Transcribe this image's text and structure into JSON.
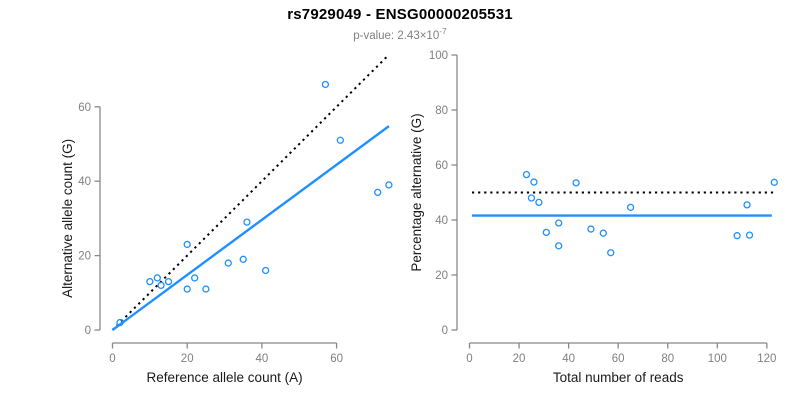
{
  "header": {
    "title": "rs7929049 - ENSG00000205531",
    "subtitle_prefix": "p-value: ",
    "subtitle_mantissa": "2.43×10",
    "subtitle_exponent": "-7"
  },
  "colors": {
    "point": "#1E90FF",
    "fit_line": "#1E90FF",
    "reference_line": "#000000",
    "axis": "#888888",
    "tick_label": "#808080",
    "axis_label": "#1a1a1a",
    "title": "#000000",
    "subtitle": "#808080",
    "background": "#ffffff"
  },
  "chart_data": [
    {
      "type": "scatter",
      "panel": "left",
      "xlabel": "Reference allele count (A)",
      "ylabel": "Alternative allele count (G)",
      "xlim": [
        0,
        74.5
      ],
      "ylim": [
        0,
        74.5
      ],
      "x_ticks": [
        0,
        20,
        40,
        60
      ],
      "y_ticks": [
        0,
        20,
        40,
        60
      ],
      "grid": false,
      "points": [
        [
          2,
          2
        ],
        [
          10,
          13
        ],
        [
          12,
          14
        ],
        [
          13,
          12
        ],
        [
          15,
          13
        ],
        [
          20,
          11
        ],
        [
          20,
          23
        ],
        [
          22,
          14
        ],
        [
          25,
          11
        ],
        [
          31,
          18
        ],
        [
          35,
          19
        ],
        [
          36,
          29
        ],
        [
          41,
          16
        ],
        [
          57,
          66
        ],
        [
          61,
          51
        ],
        [
          71,
          37
        ],
        [
          74,
          39
        ]
      ],
      "lines": [
        {
          "role": "identity-line",
          "style": "dotted",
          "color": "#000000",
          "x1": 0,
          "y1": 0,
          "x2": 73.5,
          "y2": 73.5
        },
        {
          "role": "fit-line",
          "style": "solid",
          "color": "#1E90FF",
          "x1": 0,
          "y1": 0,
          "x2": 74,
          "y2": 54.8
        }
      ]
    },
    {
      "type": "scatter",
      "panel": "right",
      "xlabel": "Total number of reads",
      "ylabel": "Percentage alternative (G)",
      "xlim": [
        0,
        124
      ],
      "ylim": [
        0,
        100
      ],
      "x_ticks": [
        0,
        20,
        40,
        60,
        80,
        100,
        120
      ],
      "y_ticks": [
        0,
        20,
        40,
        60,
        80,
        100
      ],
      "grid": false,
      "points": [
        [
          23,
          56.5
        ],
        [
          25,
          48
        ],
        [
          26,
          53.8
        ],
        [
          28,
          46.4
        ],
        [
          31,
          35.5
        ],
        [
          36,
          30.6
        ],
        [
          36,
          38.9
        ],
        [
          43,
          53.5
        ],
        [
          49,
          36.7
        ],
        [
          54,
          35.2
        ],
        [
          57,
          28.1
        ],
        [
          65,
          44.6
        ],
        [
          108,
          34.3
        ],
        [
          112,
          45.5
        ],
        [
          113,
          34.5
        ],
        [
          123,
          53.7
        ]
      ],
      "lines": [
        {
          "role": "expected-line",
          "style": "dotted",
          "color": "#000000",
          "x1": 1,
          "y1": 50,
          "x2": 123,
          "y2": 50
        },
        {
          "role": "fit-line",
          "style": "solid",
          "color": "#1E90FF",
          "x1": 1,
          "y1": 41.6,
          "x2": 122,
          "y2": 41.6
        }
      ]
    }
  ]
}
